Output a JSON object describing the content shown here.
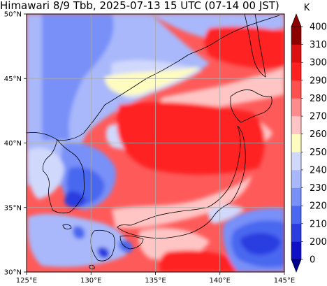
{
  "title": "Himawari 8/9 Tbb, 2025-07-13 15 UTC (07-14 00 JST)",
  "map": {
    "lon_range": [
      125,
      145
    ],
    "lat_range": [
      30,
      50
    ],
    "lon_ticks": [
      {
        "value": 125,
        "label": "125°E"
      },
      {
        "value": 130,
        "label": "130°E"
      },
      {
        "value": 135,
        "label": "135°E"
      },
      {
        "value": 140,
        "label": "140°E"
      },
      {
        "value": 145,
        "label": "145°E"
      }
    ],
    "lat_ticks": [
      {
        "value": 30,
        "label": "30°N"
      },
      {
        "value": 35,
        "label": "35°N"
      },
      {
        "value": 40,
        "label": "40°N"
      },
      {
        "value": 45,
        "label": "45°N"
      },
      {
        "value": 50,
        "label": "50°N"
      }
    ],
    "grid": true
  },
  "colorbar": {
    "unit": "K",
    "levels": [
      {
        "value": 200,
        "label": "200",
        "color": "#1010c8"
      },
      {
        "value": 210,
        "label": "210",
        "color": "#2a3ce0"
      },
      {
        "value": 220,
        "label": "220",
        "color": "#4a68f0"
      },
      {
        "value": 230,
        "label": "230",
        "color": "#7890f8"
      },
      {
        "value": 240,
        "label": "240",
        "color": "#a8b8fa"
      },
      {
        "value": 250,
        "label": "250",
        "color": "#d0d8fc"
      },
      {
        "value": 260,
        "label": "260",
        "color": "#fffcc0"
      },
      {
        "value": 270,
        "label": "270",
        "color": "#ffc4c4"
      },
      {
        "value": 280,
        "label": "280",
        "color": "#ff8c8c"
      },
      {
        "value": 290,
        "label": "290",
        "color": "#ff5050"
      },
      {
        "value": 300,
        "label": "300",
        "color": "#ff2020"
      },
      {
        "value": 310,
        "label": "310",
        "color": "#dc1010"
      },
      {
        "value": 400,
        "label": "400",
        "color": "#8c0000"
      }
    ],
    "extra_labels": [
      {
        "value": 0,
        "label": "0"
      }
    ],
    "under_color": "#00008c",
    "over_color": "#8c0000"
  }
}
